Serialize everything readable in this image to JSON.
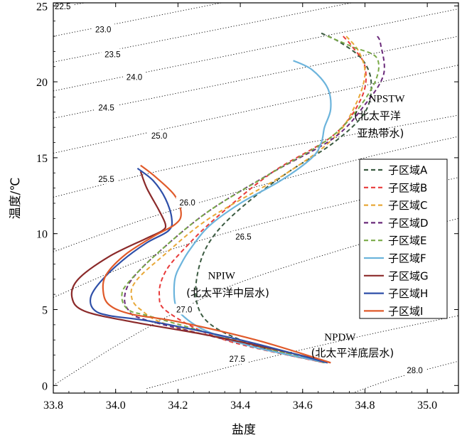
{
  "chart_data": {
    "type": "line",
    "xlabel": "盐度",
    "ylabel": "温度/℃",
    "xlim": [
      33.8,
      35.1
    ],
    "ylim": [
      -0.5,
      25.2
    ],
    "xticks": [
      33.8,
      34.0,
      34.2,
      34.4,
      34.6,
      34.8,
      35.0
    ],
    "xtick_labels": [
      "33.8",
      "34.0",
      "34.2",
      "34.4",
      "34.6",
      "34.8",
      "35.0"
    ],
    "yticks": [
      0,
      5,
      10,
      15,
      20,
      25
    ],
    "ytick_labels": [
      "0",
      "5",
      "10",
      "15",
      "20",
      "25"
    ],
    "grid": false,
    "legend_position": "right",
    "isopycnals": [
      {
        "label": "22.5",
        "points": [
          [
            33.8,
            24.8
          ],
          [
            35.1,
            30.0
          ]
        ],
        "label_at": [
          33.83,
          24.97
        ]
      },
      {
        "label": "23.0",
        "points": [
          [
            33.8,
            23.0
          ],
          [
            35.1,
            28.3
          ]
        ],
        "label_at": [
          33.96,
          23.45
        ]
      },
      {
        "label": "23.5",
        "points": [
          [
            33.8,
            21.3
          ],
          [
            35.1,
            26.6
          ]
        ],
        "label_at": [
          33.99,
          21.8
        ]
      },
      {
        "label": "24.0",
        "points": [
          [
            33.8,
            19.4
          ],
          [
            35.1,
            24.8
          ]
        ],
        "label_at": [
          34.06,
          20.3
        ]
      },
      {
        "label": "24.5",
        "points": [
          [
            33.8,
            17.6
          ],
          [
            35.1,
            23.0
          ]
        ],
        "label_at": [
          33.97,
          18.3
        ]
      },
      {
        "label": "25.0",
        "points": [
          [
            33.8,
            15.3
          ],
          [
            35.1,
            21.1
          ]
        ],
        "label_at": [
          34.14,
          16.45
        ]
      },
      {
        "label": "25.5",
        "points": [
          [
            33.8,
            12.4
          ],
          [
            34.2,
            14.4
          ],
          [
            34.7,
            16.3
          ],
          [
            35.1,
            17.8
          ]
        ],
        "label_at": [
          33.97,
          13.6
        ]
      },
      {
        "label": "26.0",
        "points": [
          [
            33.8,
            8.8
          ],
          [
            34.1,
            11.0
          ],
          [
            34.4,
            12.8
          ],
          [
            34.8,
            15.0
          ],
          [
            35.1,
            16.4
          ]
        ],
        "label_at": [
          34.23,
          12.05
        ]
      },
      {
        "label": "26.5",
        "points": [
          [
            33.8,
            5.8
          ],
          [
            34.1,
            8.4
          ],
          [
            34.4,
            10.3
          ],
          [
            34.8,
            12.3
          ],
          [
            35.1,
            13.7
          ]
        ],
        "label_at": [
          34.41,
          9.8
        ]
      },
      {
        "label": "27.0",
        "points": [
          [
            33.8,
            0.0
          ],
          [
            34.0,
            2.6
          ],
          [
            34.2,
            4.9
          ],
          [
            34.4,
            6.8
          ],
          [
            34.8,
            9.4
          ],
          [
            35.1,
            11.0
          ]
        ],
        "label_at": [
          34.22,
          5.0
        ]
      },
      {
        "label": "27.5",
        "points": [
          [
            34.1,
            -0.2
          ],
          [
            34.4,
            1.4
          ],
          [
            34.8,
            3.3
          ],
          [
            35.1,
            4.6
          ]
        ],
        "label_at": [
          34.39,
          1.75
        ]
      },
      {
        "label": "28.0",
        "points": [
          [
            34.76,
            -0.5
          ],
          [
            34.9,
            0.5
          ],
          [
            35.1,
            1.6
          ]
        ],
        "label_at": [
          34.96,
          1.0
        ]
      }
    ],
    "series": [
      {
        "name": "子区域A",
        "color": "#3a5a40",
        "dash": true,
        "x": [
          34.66,
          34.72,
          34.79,
          34.82,
          34.8,
          34.7,
          34.55,
          34.42,
          34.32,
          34.27,
          34.26,
          34.32,
          34.5,
          34.68
        ],
        "y": [
          23.2,
          22.6,
          21.5,
          20.0,
          18.0,
          16.0,
          14.0,
          12.0,
          10.0,
          8.0,
          5.5,
          3.8,
          2.3,
          1.5
        ]
      },
      {
        "name": "子区域B",
        "color": "#e83a3a",
        "dash": true,
        "x": [
          34.73,
          34.76,
          34.8,
          34.79,
          34.7,
          34.5,
          34.32,
          34.22,
          34.16,
          34.14,
          34.17,
          34.35,
          34.67
        ],
        "y": [
          23.0,
          22.3,
          21.0,
          19.0,
          16.5,
          14.0,
          11.0,
          9.0,
          7.5,
          6.0,
          4.8,
          3.0,
          1.5
        ]
      },
      {
        "name": "子区域C",
        "color": "#e8a838",
        "dash": true,
        "x": [
          34.74,
          34.78,
          34.8,
          34.77,
          34.7,
          34.55,
          34.3,
          34.15,
          34.07,
          34.05,
          34.08,
          34.2,
          34.66
        ],
        "y": [
          23.0,
          22.0,
          20.5,
          18.5,
          16.3,
          14.0,
          11.0,
          8.5,
          7.0,
          6.0,
          5.0,
          3.8,
          1.6
        ]
      },
      {
        "name": "子区域D",
        "color": "#6a2a7a",
        "dash": true,
        "x": [
          34.84,
          34.85,
          34.86,
          34.8,
          34.7,
          34.5,
          34.3,
          34.15,
          34.06,
          34.03,
          34.04,
          34.1,
          34.4,
          34.67
        ],
        "y": [
          23.0,
          22.5,
          20.5,
          18.5,
          16.3,
          14.0,
          11.5,
          9.0,
          7.2,
          6.0,
          5.0,
          4.3,
          2.8,
          1.5
        ]
      },
      {
        "name": "子区域E",
        "color": "#7aaa48",
        "dash": true,
        "x": [
          34.68,
          34.76,
          34.84,
          34.82,
          34.7,
          34.5,
          34.3,
          34.15,
          34.05,
          34.02,
          34.04,
          34.12,
          34.4,
          34.67
        ],
        "y": [
          23.0,
          22.3,
          21.5,
          19.5,
          16.5,
          14.0,
          11.5,
          9.0,
          7.0,
          6.0,
          5.0,
          4.5,
          2.9,
          1.5
        ]
      },
      {
        "name": "子区域F",
        "color": "#6cb4dc",
        "dash": false,
        "x": [
          34.57,
          34.63,
          34.68,
          34.69,
          34.67,
          34.66,
          34.63,
          34.53,
          34.4,
          34.3,
          34.24,
          34.21,
          34.19,
          34.19,
          34.21,
          34.29,
          34.45,
          34.68
        ],
        "y": [
          21.4,
          20.8,
          19.6,
          18.2,
          17.0,
          16.0,
          15.0,
          13.5,
          12.0,
          10.5,
          9.0,
          8.0,
          7.0,
          5.5,
          4.7,
          3.6,
          2.5,
          1.5
        ]
      },
      {
        "name": "子区域G",
        "color": "#8b2a2a",
        "dash": false,
        "x": [
          34.08,
          34.1,
          34.14,
          34.16,
          34.15,
          34.1,
          33.98,
          33.88,
          33.86,
          33.9,
          34.05,
          34.3,
          34.55,
          34.69
        ],
        "y": [
          14.1,
          13.0,
          11.5,
          10.6,
          10.2,
          9.7,
          8.5,
          7.0,
          5.8,
          4.9,
          4.2,
          3.3,
          2.2,
          1.5
        ]
      },
      {
        "name": "子区域H",
        "color": "#2e4fa8",
        "dash": false,
        "x": [
          34.07,
          34.12,
          34.16,
          34.18,
          34.17,
          34.1,
          34.02,
          33.95,
          33.92,
          33.93,
          33.98,
          34.12,
          34.4,
          34.68
        ],
        "y": [
          14.3,
          13.5,
          12.3,
          11.0,
          10.2,
          9.4,
          8.2,
          6.8,
          5.8,
          5.0,
          4.6,
          4.2,
          3.0,
          1.5
        ]
      },
      {
        "name": "子区域I",
        "color": "#e05a2a",
        "dash": false,
        "x": [
          34.08,
          34.13,
          34.19,
          34.21,
          34.19,
          34.12,
          34.03,
          33.97,
          33.96,
          33.98,
          34.05,
          34.2,
          34.45,
          34.69
        ],
        "y": [
          14.5,
          13.7,
          12.5,
          11.3,
          10.6,
          9.8,
          8.6,
          7.3,
          6.2,
          5.3,
          4.7,
          4.2,
          3.0,
          1.5
        ]
      }
    ],
    "annotations": [
      {
        "text": "NPSTW",
        "x": 34.87,
        "y": 18.9
      },
      {
        "text": "(北太平洋",
        "x": 34.84,
        "y": 17.75
      },
      {
        "text": "亚热带水)",
        "x": 34.85,
        "y": 16.6
      },
      {
        "text": "NPIW",
        "x": 34.34,
        "y": 7.25
      },
      {
        "text": "(北太平洋中层水)",
        "x": 34.36,
        "y": 6.1
      },
      {
        "text": "NPDW",
        "x": 34.72,
        "y": 3.2
      },
      {
        "text": "(北太平洋底层水)",
        "x": 34.76,
        "y": 2.15
      }
    ]
  }
}
